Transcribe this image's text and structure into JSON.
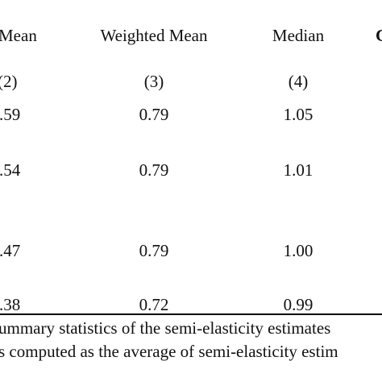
{
  "table": {
    "headers": {
      "col2": "Mean",
      "col3": "Weighted Mean",
      "col4": "Median",
      "col5": "C"
    },
    "column_numbers": {
      "col2": "(2)",
      "col3": "(3)",
      "col4": "(4)"
    },
    "rows": [
      {
        "col2": ".59",
        "col3": "0.79",
        "col4": "1.05"
      },
      {
        "col2": ".54",
        "col3": "0.79",
        "col4": "1.01"
      },
      {
        "col2": ".47",
        "col3": "0.79",
        "col4": "1.00"
      },
      {
        "col2": ".38",
        "col3": "0.72",
        "col4": "0.99"
      }
    ]
  },
  "notes": {
    "line1": "ummary statistics of the semi-elasticity estimates",
    "line2": "s computed as the average of semi-elasticity estim"
  }
}
